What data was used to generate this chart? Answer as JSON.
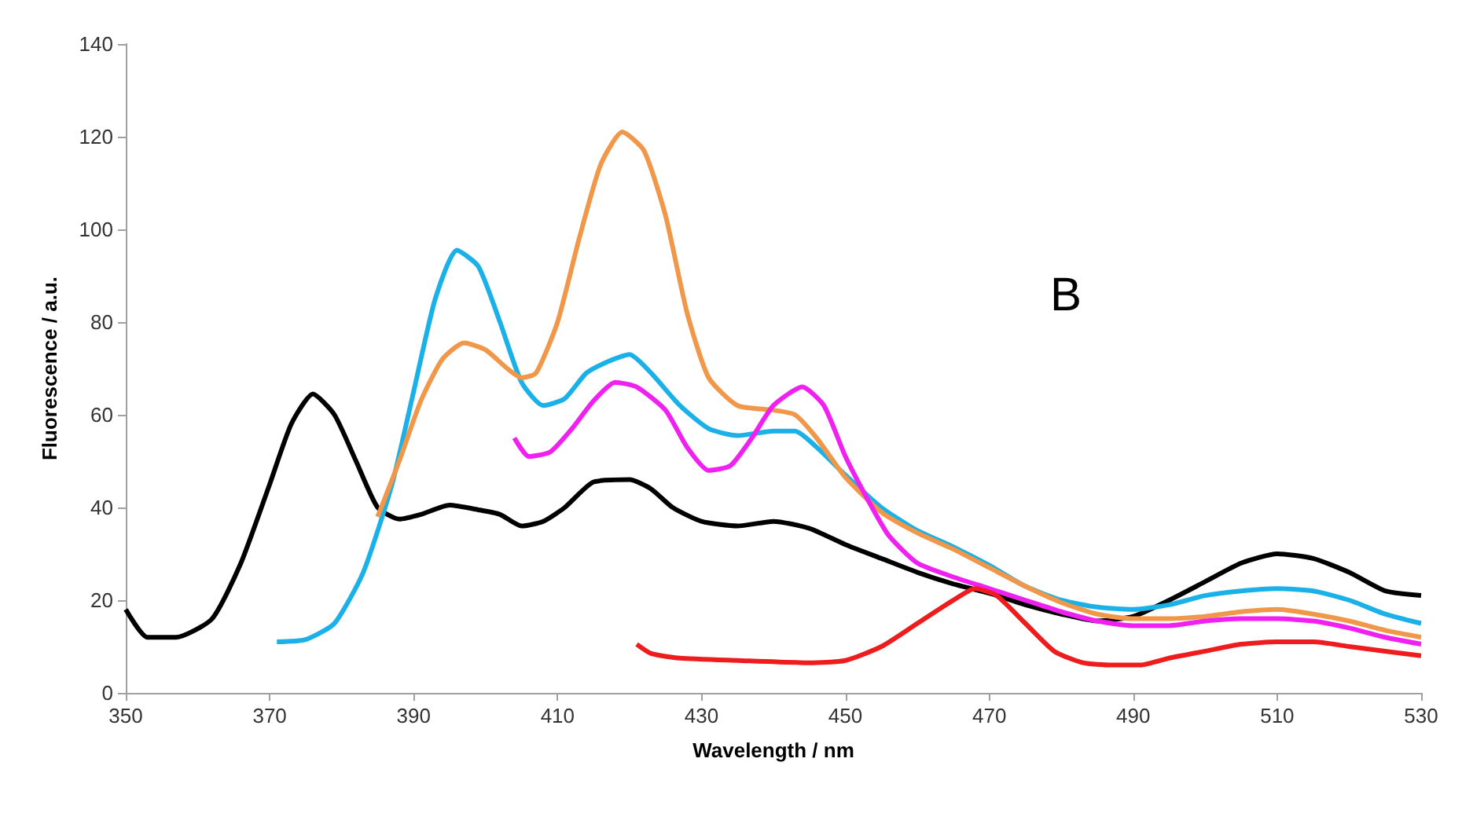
{
  "chart_data": {
    "type": "line",
    "xlabel": "Wavelength / nm",
    "ylabel": "Fluorescence / a.u.",
    "annotations": [
      "B"
    ],
    "xlim": [
      350,
      530
    ],
    "xticks": [
      350,
      370,
      390,
      410,
      430,
      450,
      470,
      490,
      510,
      530
    ],
    "ylim": [
      0,
      140
    ],
    "yticks": [
      0,
      20,
      40,
      60,
      80,
      100,
      120,
      140
    ],
    "grid": false,
    "marker": "none",
    "line_style": "solid",
    "series": [
      {
        "color": "#000000",
        "x": [
          350,
          353,
          357,
          362,
          366,
          370,
          373,
          376,
          379,
          382,
          385,
          388,
          391,
          395,
          399,
          402,
          405,
          408,
          411,
          415,
          420,
          423,
          426,
          430,
          435,
          440,
          445,
          450,
          455,
          460,
          465,
          470,
          475,
          480,
          485,
          490,
          495,
          500,
          505,
          510,
          515,
          520,
          525,
          530
        ],
        "values": [
          18,
          12,
          12,
          16,
          28,
          45,
          58,
          64.5,
          60,
          50,
          40,
          37.5,
          38.5,
          40.5,
          39.5,
          38.5,
          36,
          37,
          40,
          45.5,
          46,
          44,
          40,
          37,
          36,
          37,
          35.5,
          32,
          29,
          26,
          23.5,
          21.5,
          19,
          17,
          15.5,
          16.5,
          20,
          24,
          28,
          30,
          29,
          26,
          22,
          21
        ]
      },
      {
        "color": "#1ab0e8",
        "x": [
          371,
          375,
          379,
          383,
          387,
          390,
          393,
          396,
          399,
          402,
          405,
          408,
          411,
          414,
          417,
          420,
          423,
          427,
          431,
          435,
          440,
          443,
          446,
          450,
          455,
          460,
          465,
          470,
          475,
          480,
          485,
          490,
          495,
          500,
          505,
          510,
          515,
          520,
          525,
          530
        ],
        "values": [
          11,
          11.5,
          15,
          26,
          45,
          65,
          85,
          95.5,
          92,
          80,
          67,
          62,
          63.5,
          69,
          71.5,
          73,
          69,
          62,
          57,
          55.5,
          56.5,
          56.5,
          53,
          47,
          40,
          35,
          31.5,
          27.5,
          23,
          20,
          18.5,
          18,
          19,
          21,
          22,
          22.5,
          22,
          20,
          17,
          15
        ]
      },
      {
        "color": "#f0974a",
        "x": [
          385,
          388,
          391,
          394,
          397,
          400,
          403,
          405,
          407,
          410,
          413,
          416,
          419,
          422,
          425,
          428,
          431,
          435,
          440,
          443,
          446,
          450,
          455,
          460,
          465,
          470,
          475,
          480,
          485,
          490,
          495,
          500,
          505,
          510,
          515,
          520,
          525,
          530
        ],
        "values": [
          38,
          50,
          63,
          72,
          75.5,
          74,
          70,
          68,
          69,
          80,
          98,
          114,
          121,
          117,
          103,
          82,
          68,
          62,
          61,
          60,
          55,
          46.5,
          39,
          34.5,
          31,
          27,
          23,
          19.5,
          17,
          16,
          16,
          16.5,
          17.5,
          18,
          17,
          15.5,
          13.5,
          12
        ]
      },
      {
        "color": "#f020f0",
        "x": [
          404,
          406,
          409,
          412,
          415,
          418,
          421,
          425,
          428,
          431,
          434,
          437,
          440,
          444,
          447,
          450,
          453,
          456,
          460,
          465,
          470,
          475,
          480,
          485,
          490,
          495,
          500,
          505,
          510,
          515,
          520,
          525,
          530
        ],
        "values": [
          55,
          51,
          52,
          57,
          63,
          67,
          66,
          61,
          53,
          48,
          49,
          55,
          62,
          66,
          62,
          51,
          42,
          34,
          28,
          25,
          22.5,
          20,
          17.5,
          15.5,
          14.5,
          14.5,
          15.5,
          16,
          16,
          15.5,
          14,
          12,
          10.5
        ]
      },
      {
        "color": "#ee1c1c",
        "x": [
          421,
          423,
          427,
          435,
          445,
          450,
          455,
          460,
          465,
          468,
          471,
          475,
          479,
          483,
          487,
          491,
          495,
          500,
          505,
          510,
          515,
          520,
          525,
          530
        ],
        "values": [
          10.5,
          8.5,
          7.5,
          7,
          6.5,
          7,
          10,
          15,
          20,
          22.5,
          21,
          15,
          9,
          6.5,
          6,
          6,
          7.5,
          9,
          10.5,
          11,
          11,
          10,
          9,
          8
        ]
      }
    ]
  }
}
